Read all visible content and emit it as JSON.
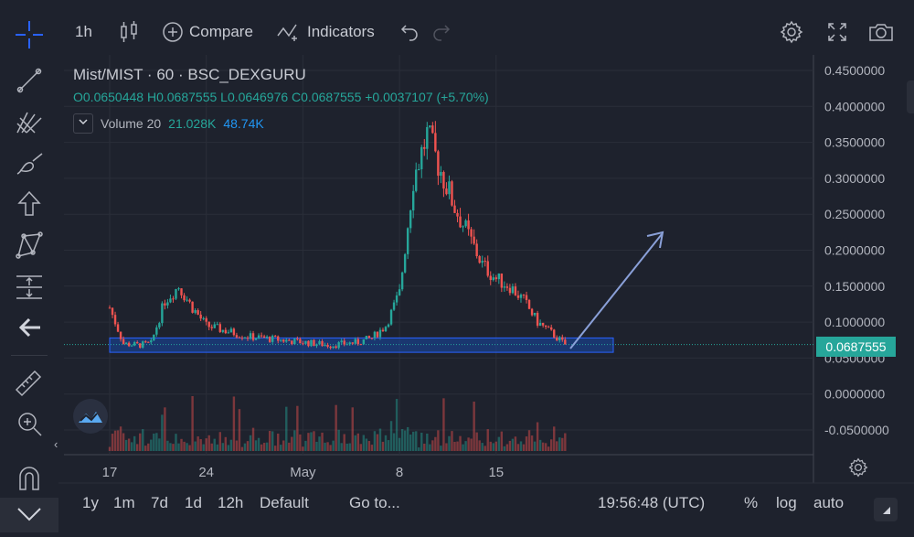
{
  "toolbar": {
    "interval": "1h",
    "compare_label": "Compare",
    "indicators_label": "Indicators"
  },
  "legend": {
    "symbol": "Mist/MIST",
    "sep1": "·",
    "interval": "60",
    "sep2": "·",
    "exchange": "BSC_DEXGURU",
    "open_label": "O",
    "open": "0.0650448",
    "high_label": "H",
    "high": "0.0687555",
    "low_label": "L",
    "low": "0.0646976",
    "close_label": "C",
    "close": "0.0687555",
    "change": "+0.0037107 (+5.70%)",
    "volume_label": "Volume 20",
    "volume_value1": "21.028K",
    "volume_value2": "48.74K"
  },
  "current_price_label": "0.0687555",
  "bottom": {
    "ranges": [
      "1y",
      "1m",
      "7d",
      "1d",
      "12h"
    ],
    "default_label": "Default",
    "goto_label": "Go to...",
    "clock": "19:56:48 (UTC)",
    "percent_label": "%",
    "log_label": "log",
    "auto_label": "auto"
  },
  "colors": {
    "background": "#1e222d",
    "up": "#26a69a",
    "down": "#ef5350",
    "price_line": "#26a69a",
    "zone": "#1848a8",
    "arrow": "#8aa0d8"
  },
  "icons": [
    "crosshair-icon",
    "trendline-icon",
    "pitchfork-icon",
    "brush-icon",
    "arrow-up-icon",
    "pattern-icon",
    "measure-icon",
    "back-arrow-icon",
    "ruler-icon",
    "zoom-icon",
    "magnet-icon",
    "chevron-down-icon",
    "settings-icon",
    "fullscreen-icon",
    "camera-icon",
    "undo-icon",
    "redo-icon",
    "candles-icon",
    "plus-circle-icon",
    "indicators-icon",
    "logo-icon",
    "gear-icon"
  ],
  "chart_data": {
    "type": "candlestick",
    "title": "Mist/MIST · 60 · BSC_DEXGURU",
    "y_axis_ticks": [
      "0.4500000",
      "0.4000000",
      "0.3500000",
      "0.3000000",
      "0.2500000",
      "0.2000000",
      "0.1500000",
      "0.1000000",
      "0.0500000",
      "0.0000000",
      "-0.0500000"
    ],
    "ylim": [
      -0.075,
      0.475
    ],
    "x_axis_ticks": [
      "17",
      "24",
      "May",
      "8",
      "15"
    ],
    "current_price": 0.0687555,
    "approximate_close_series": {
      "x_labels_anchor": {
        "17": 0,
        "24": 7,
        "May": 14,
        "8": 21,
        "15": 28
      },
      "daily_closes": [
        0.12,
        0.07,
        0.068,
        0.07,
        0.13,
        0.15,
        0.12,
        0.095,
        0.09,
        0.085,
        0.08,
        0.078,
        0.076,
        0.074,
        0.072,
        0.07,
        0.068,
        0.07,
        0.072,
        0.078,
        0.095,
        0.14,
        0.3,
        0.36,
        0.31,
        0.26,
        0.22,
        0.18,
        0.16,
        0.15,
        0.13,
        0.1,
        0.085,
        0.0688
      ]
    },
    "support_zone": [
      0.058,
      0.078
    ],
    "volume_series_label": "Volume 20"
  }
}
